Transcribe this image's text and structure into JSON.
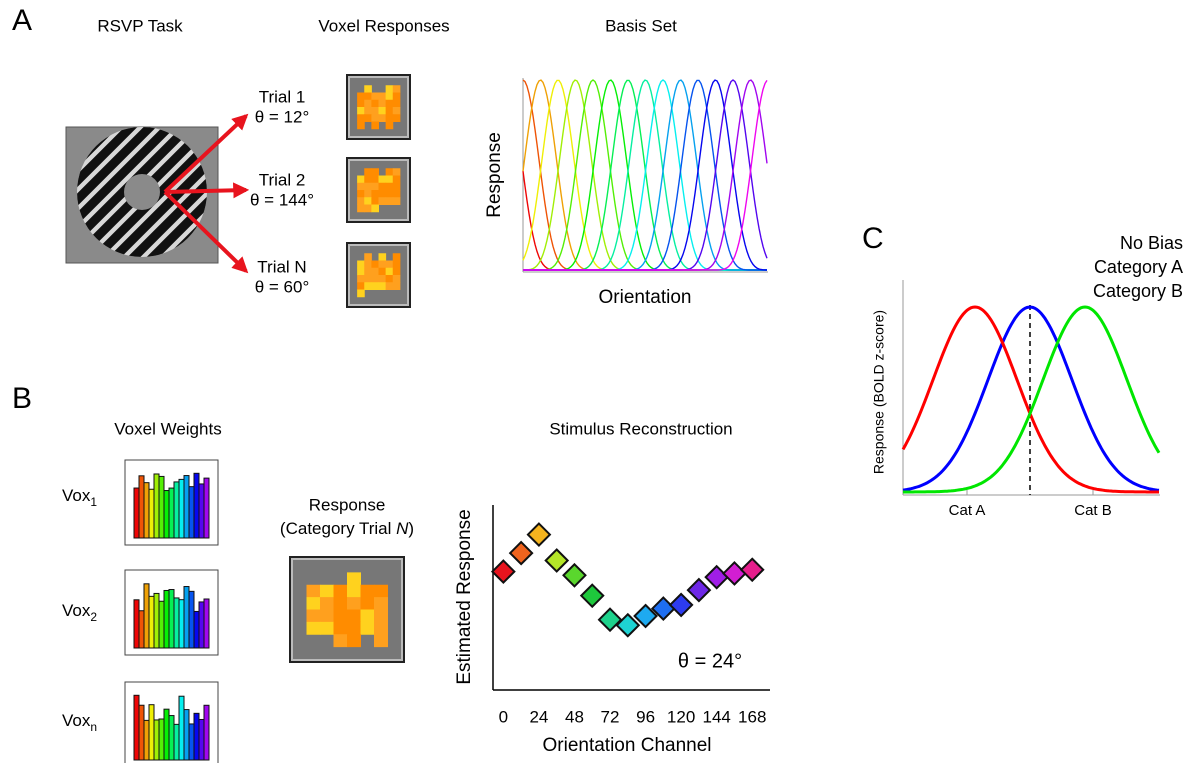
{
  "panel_a": {
    "label": "A",
    "titles": [
      "RSVP Task",
      "Voxel Responses",
      "Basis Set"
    ],
    "trials": [
      {
        "name": "Trial 1",
        "theta": "θ = 12°"
      },
      {
        "name": "Trial 2",
        "theta": "θ = 144°"
      },
      {
        "name": "Trial N",
        "theta": "θ  = 60°"
      }
    ],
    "basis_ylabel": "Response",
    "basis_xlabel": "Orientation"
  },
  "panel_b": {
    "label": "B",
    "voxel_title": "Voxel Weights",
    "voxels": [
      {
        "base": "Vox",
        "sub": "1"
      },
      {
        "base": "Vox",
        "sub": "2"
      },
      {
        "base": "Vox",
        "sub": "n"
      }
    ],
    "response_title": "Response",
    "response_sub": [
      "(Category Trial ",
      "N",
      ")"
    ]
  },
  "chart_data": {
    "type": "scatter",
    "title": "Stimulus Reconstruction",
    "x": [
      0,
      12,
      24,
      36,
      48,
      60,
      72,
      84,
      96,
      108,
      120,
      132,
      144,
      156,
      168
    ],
    "values": [
      0.64,
      0.74,
      0.84,
      0.7,
      0.62,
      0.51,
      0.38,
      0.35,
      0.4,
      0.44,
      0.46,
      0.54,
      0.61,
      0.63,
      0.65
    ],
    "colors": [
      "#e8141e",
      "#f0641e",
      "#f5b41e",
      "#b4e628",
      "#5ad72d",
      "#1ec83c",
      "#1ed28c",
      "#1ed2d2",
      "#1eaaf0",
      "#1e6ef0",
      "#2d3cf0",
      "#6e28e6",
      "#a01ee6",
      "#d21ed2",
      "#e61e8c"
    ],
    "xlim": [
      -7,
      180
    ],
    "xticks": [
      0,
      24,
      48,
      72,
      96,
      120,
      144,
      168
    ],
    "ylim": [
      0,
      1
    ],
    "xlabel": "Orientation Channel",
    "ylabel": "Estimated Response",
    "annotation": "θ = 24°"
  },
  "panel_c": {
    "label": "C",
    "legend": [
      {
        "name": "No Bias",
        "color": "#0000ff"
      },
      {
        "name": "Category A",
        "color": "#ff0000"
      },
      {
        "name": "Category B",
        "color": "#00e600"
      }
    ],
    "ylabel": "Response  (BOLD z-score)",
    "xlabels": [
      "Cat A",
      "Cat B"
    ]
  }
}
